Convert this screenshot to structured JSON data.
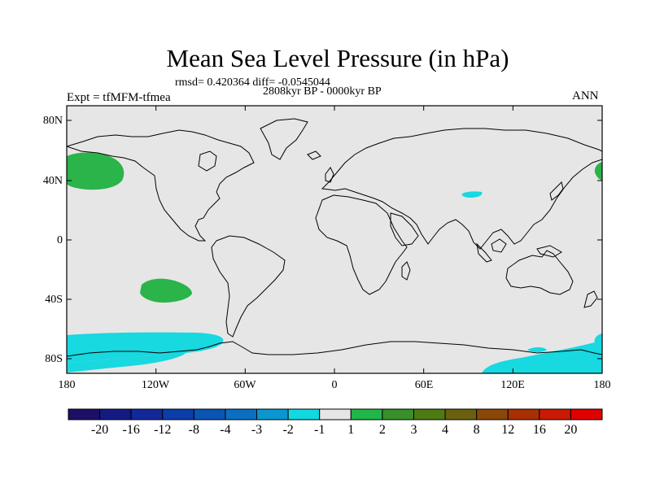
{
  "title": "Mean Sea Level Pressure (in hPa)",
  "stats": "rmsd= 0.420364 diff= -0.0545044",
  "experiment": "Expt = tfMFM-tfmea",
  "period": "2808kyr BP - 0000kyr BP",
  "season": "ANN",
  "axes": {
    "lat_labels": [
      "80N",
      "40N",
      "0",
      "40S",
      "80S"
    ],
    "lon_labels": [
      "180",
      "120W",
      "60W",
      "0",
      "60E",
      "120E",
      "180"
    ]
  },
  "colorbar": {
    "labels": [
      "-20",
      "-16",
      "-12",
      "-8",
      "-4",
      "-3",
      "-2",
      "-1",
      "1",
      "2",
      "3",
      "4",
      "8",
      "12",
      "16",
      "20"
    ],
    "colors": [
      "#1c0f66",
      "#131a82",
      "#13299a",
      "#0b3ea8",
      "#0a55b4",
      "#0a6fc0",
      "#0a96d0",
      "#12d8e0",
      "#e6e6e6",
      "#20b748",
      "#398f2a",
      "#4e7a14",
      "#6a6010",
      "#8a4808",
      "#a83005",
      "#c81a05",
      "#e00000"
    ]
  },
  "colors": {
    "background": "#e6e6e6",
    "positive_anomaly": "#2ab44a",
    "negative_anomaly": "#18d8e0"
  }
}
